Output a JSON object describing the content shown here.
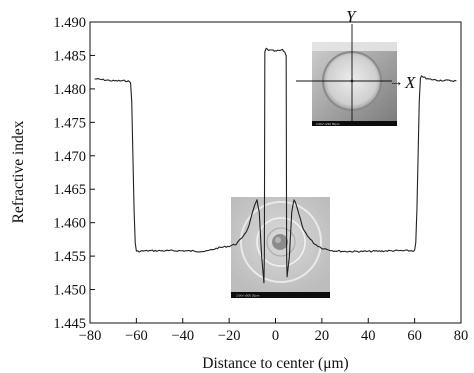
{
  "chart_data": {
    "type": "line",
    "xlabel": "Distance to center (μm)",
    "ylabel": "Refractive index",
    "xlim": [
      -80,
      80
    ],
    "ylim": [
      1.445,
      1.49
    ],
    "xticks": [
      -80,
      -60,
      -40,
      -20,
      0,
      20,
      40,
      60,
      80
    ],
    "xtick_labels": [
      "−80",
      "−60",
      "−40",
      "−20",
      "0",
      "20",
      "40",
      "60",
      "80"
    ],
    "yticks": [
      1.445,
      1.45,
      1.455,
      1.46,
      1.465,
      1.47,
      1.475,
      1.48,
      1.485,
      1.49
    ],
    "ytick_labels": [
      "1.445",
      "1.450",
      "1.455",
      "1.460",
      "1.465",
      "1.470",
      "1.475",
      "1.480",
      "1.485",
      "1.490"
    ],
    "grid": false,
    "series": [
      {
        "color": "#222222",
        "x": [
          -78,
          -70,
          -64,
          -62.5,
          -62,
          -61.5,
          -61,
          -60.5,
          -60,
          -55,
          -50,
          -40,
          -30,
          -25,
          -20,
          -17,
          -15,
          -12,
          -9,
          -8,
          -7,
          -6,
          -5,
          -4.8,
          -4.6,
          -4,
          -3,
          -1,
          0,
          1,
          3,
          4,
          4.6,
          4.8,
          5,
          6,
          7,
          8,
          9,
          12,
          15,
          17,
          20,
          25,
          30,
          40,
          50,
          55,
          60,
          60.5,
          61,
          61.5,
          62,
          62.5,
          63,
          65,
          70,
          78
        ],
        "y": [
          1.4815,
          1.4812,
          1.4812,
          1.481,
          1.478,
          1.47,
          1.462,
          1.457,
          1.4557,
          1.4558,
          1.4558,
          1.4558,
          1.4557,
          1.4562,
          1.4565,
          1.4568,
          1.4575,
          1.459,
          1.4625,
          1.4635,
          1.4615,
          1.455,
          1.451,
          1.455,
          1.4855,
          1.486,
          1.4858,
          1.4857,
          1.4856,
          1.4857,
          1.4858,
          1.4855,
          1.485,
          1.455,
          1.452,
          1.455,
          1.4615,
          1.4635,
          1.4625,
          1.459,
          1.4575,
          1.4568,
          1.4562,
          1.4558,
          1.4557,
          1.4557,
          1.4558,
          1.4558,
          1.4558,
          1.457,
          1.462,
          1.47,
          1.478,
          1.4815,
          1.482,
          1.4815,
          1.4813,
          1.4812
        ]
      }
    ],
    "insets": [
      {
        "name": "sem-cross-section-with-axes",
        "axis_labels": [
          "Y",
          "X"
        ],
        "axis_glyph": "→",
        "caption": "2.0kV  x230  50μm"
      },
      {
        "name": "sem-fiber-end-face",
        "caption": "2.0kV  x500  20μm"
      }
    ]
  }
}
